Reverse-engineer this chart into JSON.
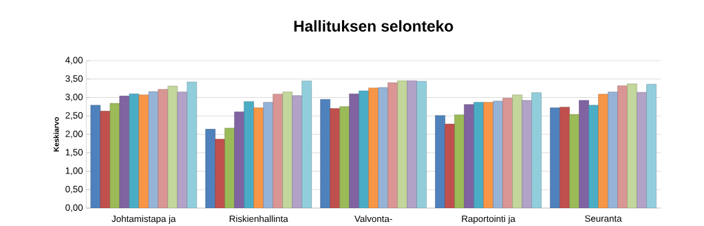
{
  "chart_data": {
    "type": "bar",
    "title": "Hallituksen selonteko",
    "ylabel": "Keskiarvo",
    "categories": [
      "Johtamistapa ja",
      "Riskienhallinta",
      "Valvonta-",
      "Raportointi ja",
      "Seuranta"
    ],
    "series": [
      {
        "color": "#4f81bd",
        "values": [
          2.79,
          2.14,
          2.95,
          2.51,
          2.72
        ]
      },
      {
        "color": "#c0504d",
        "values": [
          2.63,
          1.87,
          2.7,
          2.28,
          2.74
        ]
      },
      {
        "color": "#9bbb59",
        "values": [
          2.84,
          2.17,
          2.75,
          2.53,
          2.54
        ]
      },
      {
        "color": "#8064a2",
        "values": [
          3.04,
          2.61,
          3.1,
          2.81,
          2.92
        ]
      },
      {
        "color": "#4bacc6",
        "values": [
          3.1,
          2.89,
          3.18,
          2.87,
          2.79
        ]
      },
      {
        "color": "#f79646",
        "values": [
          3.07,
          2.72,
          3.26,
          2.87,
          3.09
        ]
      },
      {
        "color": "#95b3d7",
        "values": [
          3.16,
          2.87,
          3.27,
          2.9,
          3.15
        ]
      },
      {
        "color": "#da9694",
        "values": [
          3.22,
          3.09,
          3.4,
          2.98,
          3.32
        ]
      },
      {
        "color": "#c3d69b",
        "values": [
          3.31,
          3.15,
          3.46,
          3.07,
          3.37
        ]
      },
      {
        "color": "#b3a2c7",
        "values": [
          3.15,
          3.05,
          3.46,
          2.92,
          3.14
        ]
      },
      {
        "color": "#92cddc",
        "values": [
          3.42,
          3.45,
          3.44,
          3.13,
          3.36
        ]
      }
    ],
    "ylim": [
      0,
      4
    ],
    "yticks": [
      {
        "value": 0,
        "label": "0,00"
      },
      {
        "value": 0.5,
        "label": "0,50"
      },
      {
        "value": 1,
        "label": "1,00"
      },
      {
        "value": 1.5,
        "label": "1,50"
      },
      {
        "value": 2,
        "label": "2,00"
      },
      {
        "value": 2.5,
        "label": "2,50"
      },
      {
        "value": 3,
        "label": "3,00"
      },
      {
        "value": 3.5,
        "label": "3,50"
      },
      {
        "value": 4,
        "label": "4,00"
      }
    ],
    "grid": "y"
  }
}
